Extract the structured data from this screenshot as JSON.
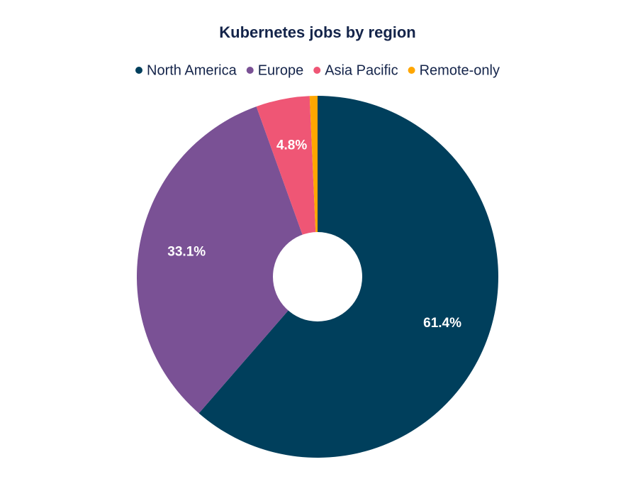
{
  "chart_data": {
    "type": "pie",
    "title": "Kubernetes jobs by region",
    "categories": [
      "North America",
      "Europe",
      "Asia Pacific",
      "Remote-only"
    ],
    "values": [
      61.4,
      33.1,
      4.8,
      0.7
    ],
    "value_labels": [
      "61.4%",
      "33.1%",
      "4.8%",
      null
    ],
    "colors": [
      "#003f5c",
      "#7a5195",
      "#ef5675",
      "#ffa600"
    ],
    "legend": "top"
  }
}
